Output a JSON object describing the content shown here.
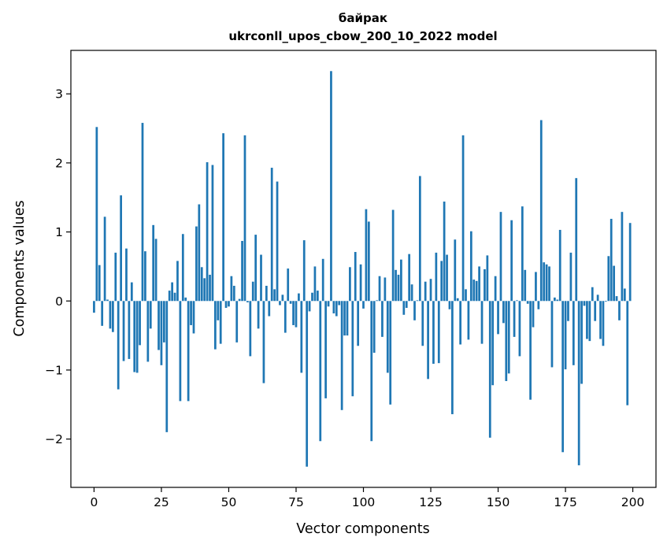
{
  "chart_data": {
    "type": "bar",
    "title": "байрак",
    "subtitle": "ukrconll_upos_cbow_200_10_2022 model",
    "xlabel": "Vector components",
    "ylabel": "Components values",
    "xlim": [
      -8.6,
      208.6
    ],
    "ylim": [
      -2.7,
      3.63
    ],
    "xticks": [
      0,
      25,
      50,
      75,
      100,
      125,
      150,
      175,
      200
    ],
    "yticks": [
      -2,
      -1,
      0,
      1,
      2,
      3
    ],
    "bar_color": "#1f77b4",
    "x": [
      0,
      1,
      2,
      3,
      4,
      5,
      6,
      7,
      8,
      9,
      10,
      11,
      12,
      13,
      14,
      15,
      16,
      17,
      18,
      19,
      20,
      21,
      22,
      23,
      24,
      25,
      26,
      27,
      28,
      29,
      30,
      31,
      32,
      33,
      34,
      35,
      36,
      37,
      38,
      39,
      40,
      41,
      42,
      43,
      44,
      45,
      46,
      47,
      48,
      49,
      50,
      51,
      52,
      53,
      54,
      55,
      56,
      57,
      58,
      59,
      60,
      61,
      62,
      63,
      64,
      65,
      66,
      67,
      68,
      69,
      70,
      71,
      72,
      73,
      74,
      75,
      76,
      77,
      78,
      79,
      80,
      81,
      82,
      83,
      84,
      85,
      86,
      87,
      88,
      89,
      90,
      91,
      92,
      93,
      94,
      95,
      96,
      97,
      98,
      99,
      100,
      101,
      102,
      103,
      104,
      105,
      106,
      107,
      108,
      109,
      110,
      111,
      112,
      113,
      114,
      115,
      116,
      117,
      118,
      119,
      120,
      121,
      122,
      123,
      124,
      125,
      126,
      127,
      128,
      129,
      130,
      131,
      132,
      133,
      134,
      135,
      136,
      137,
      138,
      139,
      140,
      141,
      142,
      143,
      144,
      145,
      146,
      147,
      148,
      149,
      150,
      151,
      152,
      153,
      154,
      155,
      156,
      157,
      158,
      159,
      160,
      161,
      162,
      163,
      164,
      165,
      166,
      167,
      168,
      169,
      170,
      171,
      172,
      173,
      174,
      175,
      176,
      177,
      178,
      179,
      180,
      181,
      182,
      183,
      184,
      185,
      186,
      187,
      188,
      189,
      190,
      191,
      192,
      193,
      194,
      195,
      196,
      197,
      198,
      199
    ],
    "values": [
      -0.17,
      2.52,
      0.52,
      -0.36,
      1.22,
      0.02,
      -0.4,
      -0.45,
      0.7,
      -1.28,
      1.53,
      -0.87,
      0.76,
      -0.84,
      0.27,
      -1.03,
      -1.04,
      -0.64,
      2.58,
      0.72,
      -0.88,
      -0.4,
      1.1,
      0.9,
      -0.71,
      -0.93,
      -0.6,
      -1.9,
      0.15,
      0.27,
      0.12,
      0.58,
      -1.45,
      0.97,
      0.05,
      -1.45,
      -0.35,
      -0.47,
      1.08,
      1.4,
      0.49,
      0.33,
      2.01,
      0.38,
      1.97,
      -0.7,
      -0.28,
      -0.62,
      2.43,
      -0.1,
      -0.08,
      0.36,
      0.22,
      -0.6,
      0.03,
      0.87,
      2.4,
      -0.02,
      -0.8,
      0.28,
      0.96,
      -0.4,
      0.67,
      -1.19,
      0.22,
      -0.22,
      1.93,
      0.17,
      1.73,
      -0.06,
      0.09,
      -0.46,
      0.47,
      -0.04,
      -0.35,
      -0.38,
      0.11,
      -1.04,
      0.88,
      -2.4,
      -0.15,
      0.12,
      0.5,
      0.15,
      -2.03,
      0.61,
      -1.41,
      -0.08,
      3.33,
      -0.18,
      -0.22,
      -0.06,
      -1.58,
      -0.5,
      -0.5,
      0.49,
      -1.38,
      0.71,
      -0.65,
      0.53,
      -0.11,
      1.33,
      1.15,
      -2.03,
      -0.75,
      0.01,
      0.36,
      -0.52,
      0.34,
      -1.04,
      -1.5,
      1.32,
      0.45,
      0.38,
      0.6,
      -0.2,
      -0.1,
      0.68,
      0.24,
      -0.28,
      0.01,
      1.81,
      -0.65,
      0.28,
      -1.13,
      0.32,
      -0.91,
      0.7,
      -0.9,
      0.58,
      1.44,
      0.67,
      -0.12,
      -1.64,
      0.89,
      0.04,
      -0.63,
      2.4,
      0.17,
      -0.56,
      1.01,
      0.31,
      0.29,
      0.5,
      -0.62,
      0.46,
      0.66,
      -1.98,
      -1.22,
      0.36,
      -0.48,
      1.29,
      -0.32,
      -1.16,
      -1.05,
      1.17,
      -0.52,
      0.01,
      -0.8,
      1.37,
      0.45,
      -0.04,
      -1.43,
      -0.38,
      0.42,
      -0.12,
      2.62,
      0.56,
      0.53,
      0.5,
      -0.96,
      0.05,
      0.02,
      1.03,
      -2.19,
      -0.99,
      -0.29,
      0.7,
      -0.93,
      1.78,
      -2.38,
      -1.2,
      -0.07,
      -0.55,
      -0.58,
      0.2,
      -0.29,
      0.09,
      -0.55,
      -0.65,
      -0.01,
      0.65,
      1.19,
      0.51,
      0.07,
      -0.28,
      1.29,
      0.18,
      -1.51,
      1.13
    ]
  }
}
